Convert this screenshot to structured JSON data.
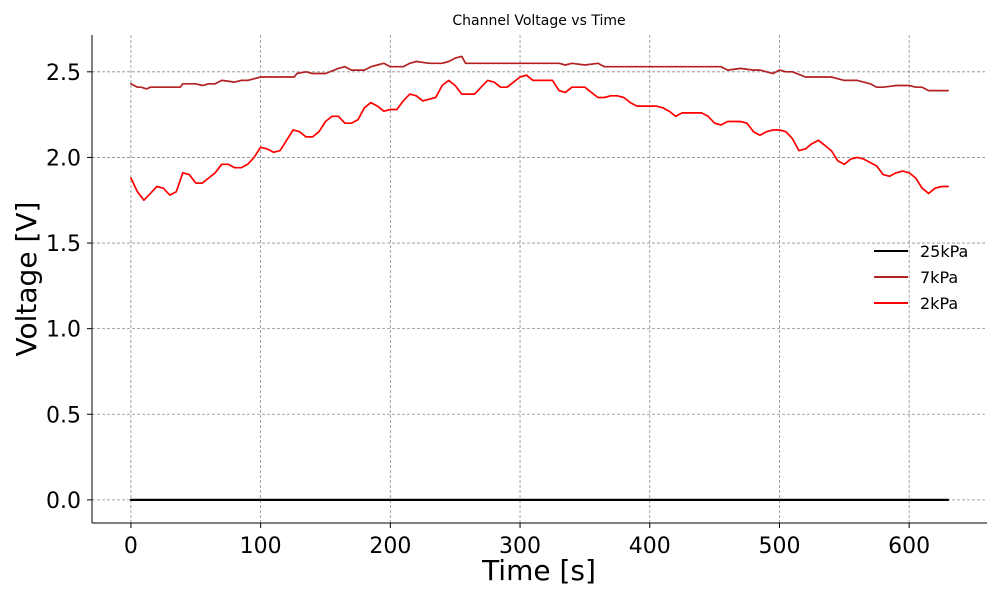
{
  "chart_data": {
    "type": "line",
    "title": "Channel Voltage vs Time",
    "xlabel": "Time [s]",
    "ylabel": "Voltage [V]",
    "xlim": [
      -30,
      660
    ],
    "ylim": [
      -0.135,
      2.715
    ],
    "xticks": [
      0,
      100,
      200,
      300,
      400,
      500,
      600
    ],
    "yticks": [
      0.0,
      0.5,
      1.0,
      1.5,
      2.0,
      2.5
    ],
    "xtick_labels": [
      "0",
      "100",
      "200",
      "300",
      "400",
      "500",
      "600"
    ],
    "ytick_labels": [
      "0.0",
      "0.5",
      "1.0",
      "1.5",
      "2.0",
      "2.5"
    ],
    "grid": true,
    "legend_position": "center-right",
    "series": [
      {
        "name": "25kPa",
        "color": "#000000",
        "x": [
          0,
          630
        ],
        "y": [
          0.0,
          0.0
        ]
      },
      {
        "name": "7kPa",
        "color": "#b22222",
        "x": [
          0,
          5,
          8,
          12,
          15,
          20,
          30,
          38,
          40,
          50,
          55,
          60,
          65,
          70,
          80,
          85,
          90,
          100,
          105,
          110,
          120,
          126,
          128,
          135,
          140,
          150,
          160,
          165,
          170,
          180,
          185,
          190,
          195,
          200,
          210,
          215,
          220,
          230,
          240,
          245,
          250,
          255,
          258,
          260,
          270,
          280,
          290,
          300,
          310,
          320,
          330,
          335,
          340,
          350,
          360,
          365,
          370,
          380,
          390,
          400,
          410,
          420,
          430,
          440,
          450,
          455,
          460,
          470,
          480,
          485,
          490,
          495,
          500,
          505,
          510,
          520,
          530,
          535,
          540,
          550,
          560,
          570,
          575,
          580,
          590,
          600,
          605,
          610,
          615,
          620,
          630
        ],
        "y": [
          2.43,
          2.41,
          2.41,
          2.4,
          2.41,
          2.41,
          2.41,
          2.41,
          2.43,
          2.43,
          2.42,
          2.43,
          2.43,
          2.45,
          2.44,
          2.45,
          2.45,
          2.47,
          2.47,
          2.47,
          2.47,
          2.47,
          2.49,
          2.5,
          2.49,
          2.49,
          2.52,
          2.53,
          2.51,
          2.51,
          2.53,
          2.54,
          2.55,
          2.53,
          2.53,
          2.55,
          2.56,
          2.55,
          2.55,
          2.56,
          2.58,
          2.59,
          2.55,
          2.55,
          2.55,
          2.55,
          2.55,
          2.55,
          2.55,
          2.55,
          2.55,
          2.54,
          2.55,
          2.54,
          2.55,
          2.53,
          2.53,
          2.53,
          2.53,
          2.53,
          2.53,
          2.53,
          2.53,
          2.53,
          2.53,
          2.53,
          2.51,
          2.52,
          2.51,
          2.51,
          2.5,
          2.49,
          2.51,
          2.5,
          2.5,
          2.47,
          2.47,
          2.47,
          2.47,
          2.45,
          2.45,
          2.43,
          2.41,
          2.41,
          2.42,
          2.42,
          2.41,
          2.41,
          2.39,
          2.39,
          2.39
        ]
      },
      {
        "name": "2kPa",
        "color": "#ff0000",
        "x": [
          0,
          5,
          10,
          15,
          20,
          25,
          30,
          35,
          40,
          45,
          50,
          55,
          60,
          65,
          70,
          75,
          80,
          85,
          90,
          95,
          100,
          105,
          110,
          115,
          120,
          125,
          130,
          135,
          140,
          145,
          150,
          155,
          160,
          165,
          170,
          175,
          180,
          185,
          190,
          195,
          200,
          205,
          210,
          215,
          220,
          225,
          230,
          235,
          240,
          245,
          250,
          255,
          260,
          265,
          270,
          275,
          280,
          285,
          290,
          295,
          300,
          305,
          310,
          315,
          320,
          325,
          330,
          335,
          340,
          345,
          350,
          355,
          360,
          365,
          370,
          375,
          380,
          385,
          390,
          395,
          400,
          405,
          410,
          415,
          420,
          425,
          430,
          435,
          440,
          445,
          450,
          455,
          460,
          465,
          470,
          475,
          480,
          485,
          490,
          495,
          500,
          505,
          510,
          515,
          520,
          525,
          530,
          535,
          540,
          545,
          550,
          555,
          560,
          565,
          570,
          575,
          580,
          585,
          590,
          595,
          600,
          605,
          610,
          615,
          620,
          625,
          630
        ],
        "y": [
          1.88,
          1.8,
          1.75,
          1.79,
          1.83,
          1.82,
          1.78,
          1.8,
          1.91,
          1.9,
          1.85,
          1.85,
          1.88,
          1.91,
          1.96,
          1.96,
          1.94,
          1.94,
          1.96,
          2.0,
          2.06,
          2.05,
          2.03,
          2.04,
          2.1,
          2.16,
          2.15,
          2.12,
          2.12,
          2.15,
          2.21,
          2.24,
          2.24,
          2.2,
          2.2,
          2.22,
          2.29,
          2.32,
          2.3,
          2.27,
          2.28,
          2.28,
          2.33,
          2.37,
          2.36,
          2.33,
          2.34,
          2.35,
          2.42,
          2.45,
          2.42,
          2.37,
          2.37,
          2.37,
          2.41,
          2.45,
          2.44,
          2.41,
          2.41,
          2.44,
          2.47,
          2.48,
          2.45,
          2.45,
          2.45,
          2.45,
          2.39,
          2.38,
          2.41,
          2.41,
          2.41,
          2.38,
          2.35,
          2.35,
          2.36,
          2.36,
          2.35,
          2.32,
          2.3,
          2.3,
          2.3,
          2.3,
          2.29,
          2.27,
          2.24,
          2.26,
          2.26,
          2.26,
          2.26,
          2.24,
          2.2,
          2.19,
          2.21,
          2.21,
          2.21,
          2.2,
          2.15,
          2.13,
          2.15,
          2.16,
          2.16,
          2.15,
          2.11,
          2.04,
          2.05,
          2.08,
          2.1,
          2.07,
          2.04,
          1.98,
          1.96,
          1.99,
          2.0,
          1.99,
          1.97,
          1.95,
          1.9,
          1.89,
          1.91,
          1.92,
          1.91,
          1.88,
          1.82,
          1.79,
          1.82,
          1.83,
          1.83
        ]
      }
    ]
  }
}
